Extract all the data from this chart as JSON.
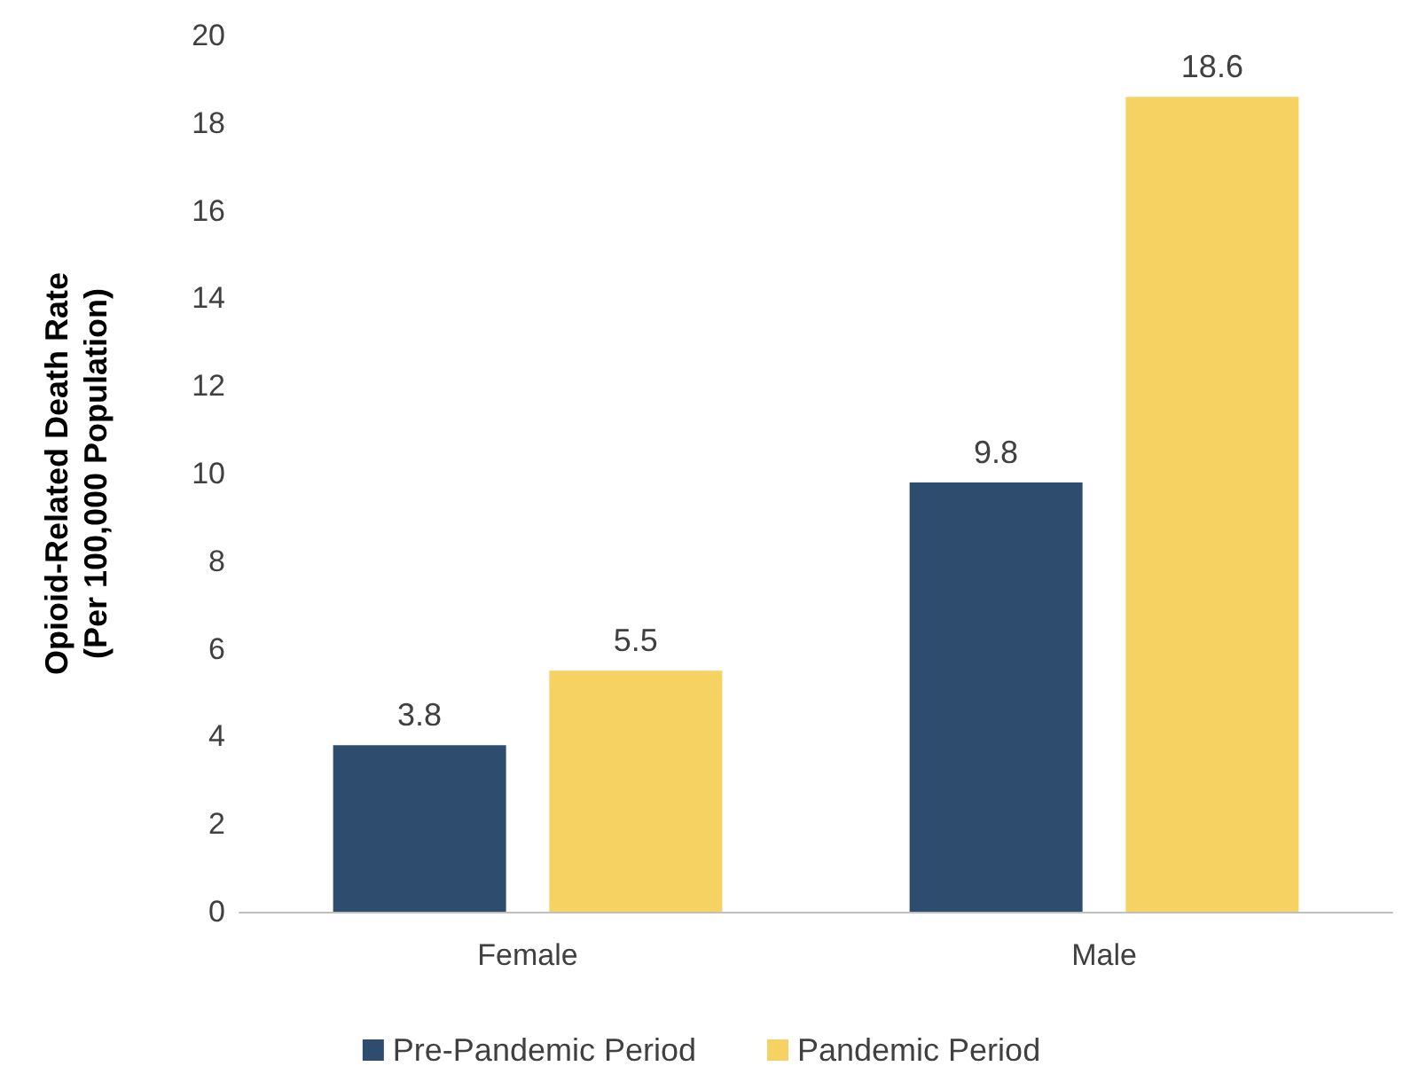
{
  "chart_data": {
    "type": "bar",
    "ylabel": "Opioid-Related Death Rate\n(Per 100,000 Population)",
    "categories": [
      "Female",
      "Male"
    ],
    "series": [
      {
        "name": "Pre-Pandemic Period",
        "color": "#2e4d6e",
        "values": [
          3.8,
          9.8
        ]
      },
      {
        "name": "Pandemic Period",
        "color": "#f5d262",
        "values": [
          5.5,
          18.6
        ]
      }
    ],
    "ylim": [
      0,
      20
    ],
    "yticks": [
      0,
      2,
      4,
      6,
      8,
      10,
      12,
      14,
      16,
      18,
      20
    ],
    "grid": false,
    "legend": "bottom",
    "data_labels": true
  }
}
